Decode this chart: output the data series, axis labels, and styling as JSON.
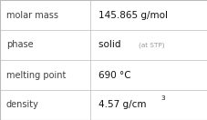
{
  "rows": [
    {
      "label": "molar mass",
      "value": "145.865 g/mol",
      "value2": null,
      "superscript": null
    },
    {
      "label": "phase",
      "value": "solid",
      "value2": "(at STP)",
      "superscript": null
    },
    {
      "label": "melting point",
      "value": "690 °C",
      "value2": null,
      "superscript": null
    },
    {
      "label": "density",
      "value": "4.57 g/cm",
      "value2": null,
      "superscript": "3"
    }
  ],
  "bg_color": "#ffffff",
  "border_color": "#bbbbbb",
  "label_color": "#404040",
  "value_color": "#111111",
  "small_text_color": "#999999",
  "fig_width": 2.28,
  "fig_height": 1.32,
  "dpi": 100,
  "label_fontsize": 7.0,
  "value_fontsize": 7.5,
  "small_fontsize": 5.2,
  "col_split": 0.435
}
